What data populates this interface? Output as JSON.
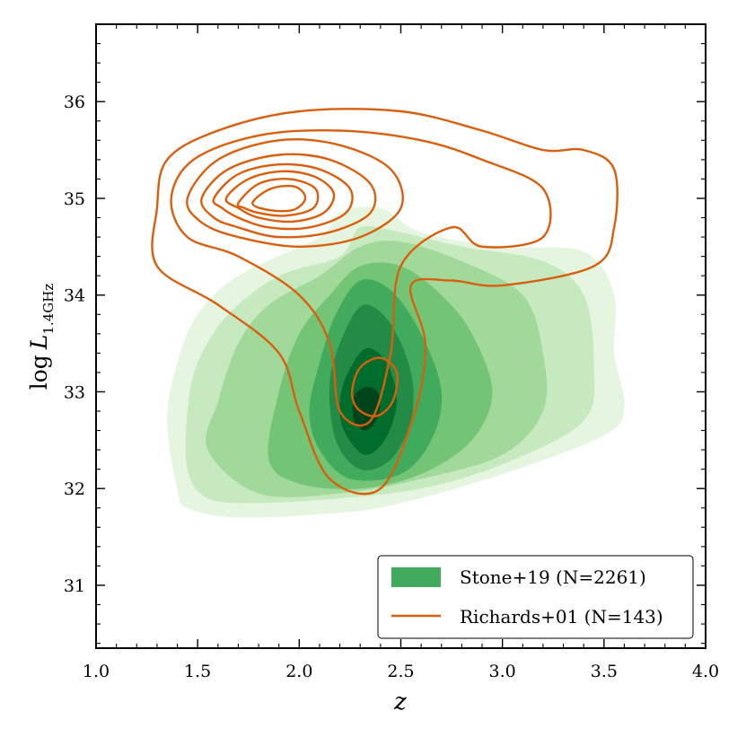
{
  "chart_data": {
    "type": "contour",
    "title": "",
    "xlabel": "z",
    "ylabel": {
      "prefix": "log",
      "symbol": "L",
      "subscript": "1.4GHz"
    },
    "xlim": [
      1.0,
      4.0
    ],
    "ylim": [
      30.35,
      36.8
    ],
    "x_ticks": [
      "1.0",
      "1.5",
      "2.0",
      "2.5",
      "3.0",
      "3.5",
      "4.0"
    ],
    "y_ticks": [
      "31",
      "32",
      "33",
      "34",
      "35",
      "36"
    ],
    "grid": false,
    "legend_position": "bottom-right",
    "series": [
      {
        "name": "Stone+19 (N=2261)",
        "kind": "filled-kde",
        "color": "#31a354",
        "levels": [
          {
            "color": "#e5f5e0",
            "points": [
              [
                1.4,
                32.0
              ],
              [
                1.45,
                31.8
              ],
              [
                1.7,
                31.7
              ],
              [
                2.2,
                31.75
              ],
              [
                2.5,
                31.85
              ],
              [
                3.0,
                32.15
              ],
              [
                3.5,
                32.55
              ],
              [
                3.6,
                32.85
              ],
              [
                3.55,
                33.4
              ],
              [
                3.55,
                34.0
              ],
              [
                3.4,
                34.45
              ],
              [
                3.0,
                34.5
              ],
              [
                2.6,
                34.65
              ],
              [
                2.4,
                34.9
              ],
              [
                2.2,
                34.85
              ],
              [
                2.1,
                34.6
              ],
              [
                1.7,
                34.2
              ],
              [
                1.5,
                33.8
              ],
              [
                1.4,
                33.3
              ],
              [
                1.35,
                32.7
              ]
            ]
          },
          {
            "color": "#c7e9c0",
            "points": [
              [
                1.45,
                32.2
              ],
              [
                1.55,
                31.9
              ],
              [
                1.8,
                31.85
              ],
              [
                2.2,
                31.9
              ],
              [
                2.6,
                32.0
              ],
              [
                3.0,
                32.25
              ],
              [
                3.4,
                32.7
              ],
              [
                3.45,
                33.3
              ],
              [
                3.4,
                34.0
              ],
              [
                3.2,
                34.35
              ],
              [
                2.8,
                34.5
              ],
              [
                2.5,
                34.65
              ],
              [
                2.3,
                34.7
              ],
              [
                2.2,
                34.4
              ],
              [
                1.9,
                34.2
              ],
              [
                1.65,
                33.8
              ],
              [
                1.5,
                33.3
              ],
              [
                1.45,
                32.8
              ]
            ]
          },
          {
            "color": "#a1d99b",
            "points": [
              [
                1.55,
                32.4
              ],
              [
                1.8,
                31.95
              ],
              [
                2.2,
                31.95
              ],
              [
                2.6,
                32.1
              ],
              [
                3.0,
                32.35
              ],
              [
                3.2,
                32.8
              ],
              [
                3.2,
                33.4
              ],
              [
                3.1,
                34.0
              ],
              [
                2.8,
                34.35
              ],
              [
                2.5,
                34.55
              ],
              [
                2.3,
                34.5
              ],
              [
                2.1,
                34.2
              ],
              [
                1.85,
                33.9
              ],
              [
                1.7,
                33.5
              ],
              [
                1.6,
                32.9
              ]
            ]
          },
          {
            "color": "#74c476",
            "points": [
              [
                1.85,
                32.3
              ],
              [
                2.0,
                32.05
              ],
              [
                2.3,
                32.0
              ],
              [
                2.6,
                32.15
              ],
              [
                2.85,
                32.5
              ],
              [
                2.95,
                33.0
              ],
              [
                2.85,
                33.6
              ],
              [
                2.7,
                34.0
              ],
              [
                2.5,
                34.3
              ],
              [
                2.3,
                34.3
              ],
              [
                2.15,
                34.0
              ],
              [
                2.0,
                33.6
              ],
              [
                1.9,
                33.0
              ]
            ]
          },
          {
            "color": "#41ab5d",
            "points": [
              [
                2.1,
                32.4
              ],
              [
                2.25,
                32.1
              ],
              [
                2.5,
                32.15
              ],
              [
                2.65,
                32.5
              ],
              [
                2.7,
                33.0
              ],
              [
                2.6,
                33.6
              ],
              [
                2.45,
                34.05
              ],
              [
                2.3,
                34.15
              ],
              [
                2.18,
                33.8
              ],
              [
                2.1,
                33.3
              ],
              [
                2.05,
                32.8
              ]
            ]
          },
          {
            "color": "#238b45",
            "points": [
              [
                2.18,
                32.5
              ],
              [
                2.3,
                32.2
              ],
              [
                2.45,
                32.3
              ],
              [
                2.55,
                32.7
              ],
              [
                2.55,
                33.2
              ],
              [
                2.45,
                33.7
              ],
              [
                2.32,
                33.9
              ],
              [
                2.22,
                33.6
              ],
              [
                2.15,
                33.1
              ]
            ]
          },
          {
            "color": "#006d2c",
            "points": [
              [
                2.22,
                32.6
              ],
              [
                2.32,
                32.35
              ],
              [
                2.42,
                32.5
              ],
              [
                2.48,
                32.9
              ],
              [
                2.43,
                33.3
              ],
              [
                2.33,
                33.45
              ],
              [
                2.24,
                33.2
              ],
              [
                2.2,
                32.9
              ]
            ]
          },
          {
            "color": "#00441b",
            "points": [
              [
                2.27,
                32.7
              ],
              [
                2.33,
                32.6
              ],
              [
                2.39,
                32.75
              ],
              [
                2.39,
                32.98
              ],
              [
                2.33,
                33.05
              ],
              [
                2.27,
                32.95
              ]
            ]
          }
        ]
      },
      {
        "name": "Richards+01 (N=143)",
        "kind": "kde-contour-lines",
        "color": "#d95f0e",
        "levels": [
          {
            "points": [
              [
                1.3,
                34.9
              ],
              [
                1.35,
                35.4
              ],
              [
                1.6,
                35.7
              ],
              [
                2.0,
                35.9
              ],
              [
                2.5,
                35.9
              ],
              [
                2.9,
                35.7
              ],
              [
                3.2,
                35.5
              ],
              [
                3.4,
                35.5
              ],
              [
                3.55,
                35.3
              ],
              [
                3.55,
                34.7
              ],
              [
                3.45,
                34.3
              ],
              [
                3.0,
                34.1
              ],
              [
                2.75,
                34.15
              ],
              [
                2.55,
                34.1
              ],
              [
                2.62,
                33.5
              ],
              [
                2.57,
                32.8
              ],
              [
                2.4,
                32.0
              ],
              [
                2.15,
                32.1
              ],
              [
                2.0,
                32.8
              ],
              [
                1.9,
                33.4
              ],
              [
                1.6,
                33.9
              ],
              [
                1.3,
                34.3
              ]
            ]
          },
          {
            "points": [
              [
                1.37,
                35.0
              ],
              [
                1.48,
                35.4
              ],
              [
                1.8,
                35.65
              ],
              [
                2.2,
                35.7
              ],
              [
                2.6,
                35.6
              ],
              [
                2.9,
                35.4
              ],
              [
                3.2,
                35.1
              ],
              [
                3.2,
                34.6
              ],
              [
                2.9,
                34.5
              ],
              [
                2.75,
                34.7
              ],
              [
                2.5,
                34.3
              ],
              [
                2.45,
                33.4
              ],
              [
                2.35,
                32.7
              ],
              [
                2.2,
                32.8
              ],
              [
                2.15,
                33.5
              ],
              [
                2.0,
                34.0
              ],
              [
                1.7,
                34.4
              ],
              [
                1.45,
                34.6
              ]
            ]
          },
          {
            "points": [
              [
                1.45,
                35.0
              ],
              [
                1.6,
                35.4
              ],
              [
                1.9,
                35.6
              ],
              [
                2.2,
                35.55
              ],
              [
                2.45,
                35.3
              ],
              [
                2.5,
                34.9
              ],
              [
                2.3,
                34.6
              ],
              [
                2.0,
                34.5
              ],
              [
                1.7,
                34.6
              ],
              [
                1.52,
                34.75
              ]
            ]
          },
          {
            "points": [
              [
                1.52,
                35.0
              ],
              [
                1.65,
                35.3
              ],
              [
                1.9,
                35.45
              ],
              [
                2.15,
                35.4
              ],
              [
                2.35,
                35.15
              ],
              [
                2.35,
                34.85
              ],
              [
                2.15,
                34.65
              ],
              [
                1.9,
                34.6
              ],
              [
                1.7,
                34.7
              ],
              [
                1.58,
                34.8
              ]
            ]
          },
          {
            "points": [
              [
                1.58,
                35.0
              ],
              [
                1.7,
                35.25
              ],
              [
                1.9,
                35.35
              ],
              [
                2.1,
                35.3
              ],
              [
                2.25,
                35.1
              ],
              [
                2.23,
                34.85
              ],
              [
                2.05,
                34.7
              ],
              [
                1.85,
                34.7
              ],
              [
                1.7,
                34.8
              ],
              [
                1.62,
                34.9
              ]
            ]
          },
          {
            "points": [
              [
                1.64,
                35.0
              ],
              [
                1.75,
                35.2
              ],
              [
                1.92,
                35.28
              ],
              [
                2.08,
                35.22
              ],
              [
                2.17,
                35.05
              ],
              [
                2.12,
                34.85
              ],
              [
                1.97,
                34.76
              ],
              [
                1.8,
                34.8
              ],
              [
                1.7,
                34.9
              ]
            ]
          },
          {
            "points": [
              [
                1.7,
                34.95
              ],
              [
                1.8,
                35.15
              ],
              [
                1.95,
                35.2
              ],
              [
                2.08,
                35.1
              ],
              [
                2.07,
                34.9
              ],
              [
                1.93,
                34.82
              ],
              [
                1.8,
                34.85
              ],
              [
                1.73,
                34.9
              ]
            ]
          },
          {
            "points": [
              [
                1.77,
                34.95
              ],
              [
                1.86,
                35.1
              ],
              [
                1.98,
                35.12
              ],
              [
                2.03,
                35.0
              ],
              [
                1.97,
                34.88
              ],
              [
                1.85,
                34.88
              ]
            ]
          },
          {
            "points": [
              [
                2.26,
                33.0
              ],
              [
                2.3,
                33.25
              ],
              [
                2.4,
                33.35
              ],
              [
                2.48,
                33.2
              ],
              [
                2.46,
                32.9
              ],
              [
                2.38,
                32.75
              ],
              [
                2.29,
                32.82
              ]
            ]
          }
        ]
      }
    ],
    "legend": [
      {
        "label": "Stone+19 (N=2261)",
        "swatch": "patch",
        "color": "#41ab5d"
      },
      {
        "label": "Richards+01 (N=143)",
        "swatch": "line",
        "color": "#d95f0e"
      }
    ]
  }
}
